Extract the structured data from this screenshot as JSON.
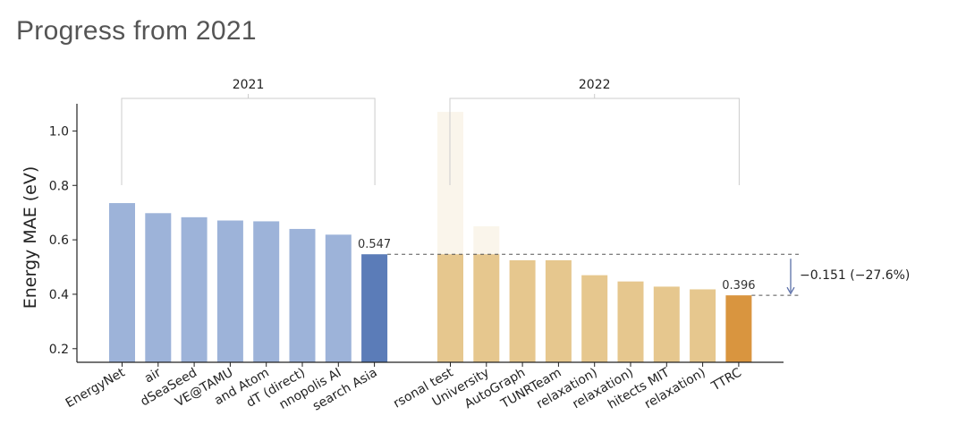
{
  "page": {
    "title": "Progress from 2021"
  },
  "chart_data": {
    "type": "bar",
    "ylabel": "Energy MAE (eV)",
    "ylim": [
      0.15,
      1.1
    ],
    "yticks": [
      0.2,
      0.4,
      0.6,
      0.8,
      1.0
    ],
    "yticks_labels": [
      "0.2",
      "0.4",
      "0.6",
      "0.8",
      "1.0"
    ],
    "groups": [
      {
        "name": "2021",
        "color": "#9db3d9",
        "highlight_color": "#5b7cb8",
        "categories": [
          "EnergyNet",
          "air",
          "dSeaSeed",
          "VE@TAMU",
          "and Atom",
          "dT (direct)",
          "nnopolis AI",
          "search Asia"
        ],
        "values": [
          0.735,
          0.698,
          0.683,
          0.671,
          0.668,
          0.64,
          0.619,
          0.547
        ],
        "highlight_index": 7,
        "highlight_label": "0.547"
      },
      {
        "name": "2022",
        "color": "#e6c78e",
        "highlight_color": "#d9953f",
        "categories": [
          "rsonal test",
          "University",
          "AutoGraph",
          "TUNRTeam",
          "relaxation)",
          "relaxation)",
          "hitects MIT",
          "relaxation)",
          "TTRC"
        ],
        "values": [
          1.07,
          0.65,
          0.525,
          0.525,
          0.47,
          0.447,
          0.428,
          0.418,
          0.396
        ],
        "faded": [
          0,
          1
        ],
        "highlight_index": 8,
        "highlight_label": "0.396"
      }
    ],
    "annotation": {
      "from": 0.547,
      "to": 0.396,
      "label": "−0.151 (−27.6%)"
    }
  }
}
